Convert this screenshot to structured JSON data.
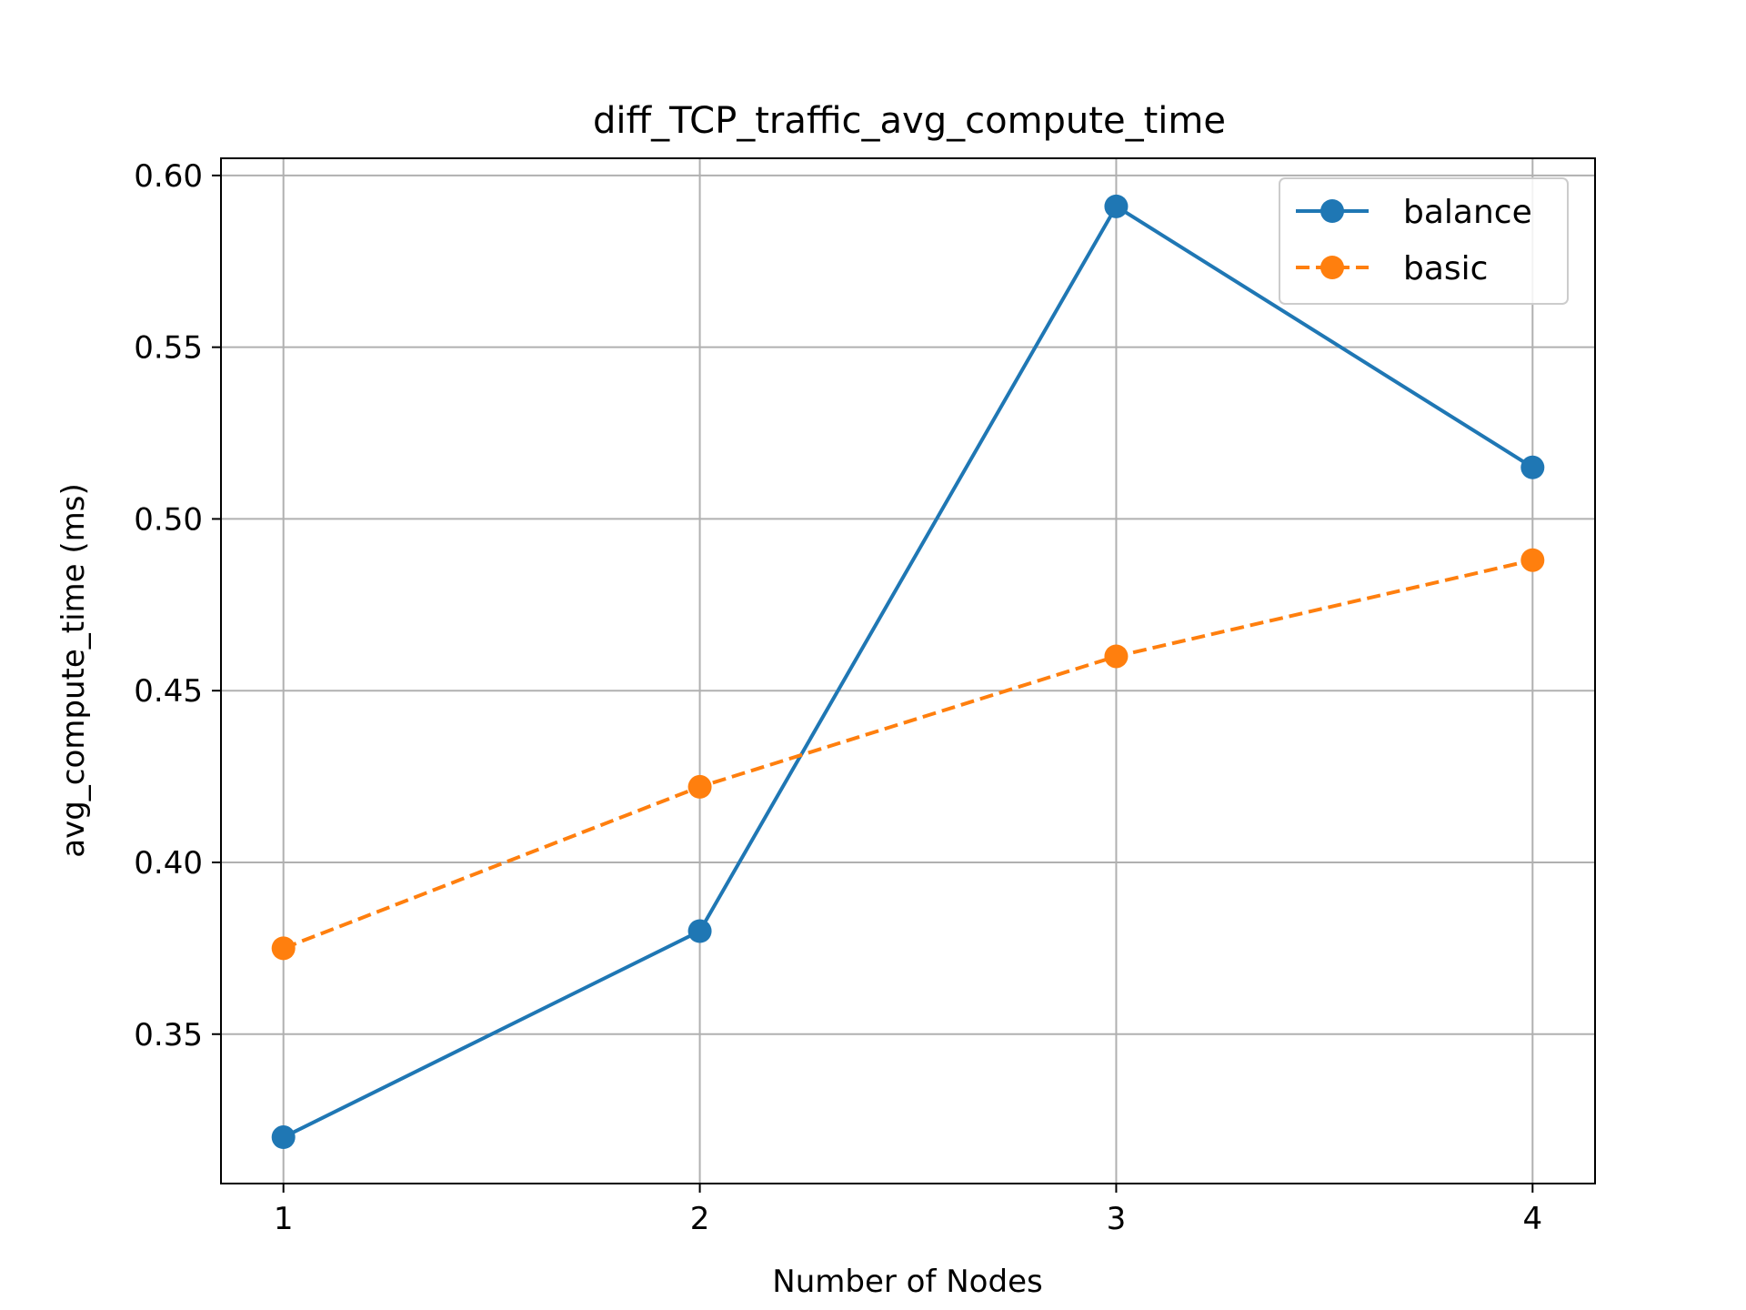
{
  "chart_data": {
    "type": "line",
    "title": "diff_TCP_traffic_avg_compute_time",
    "xlabel": "Number of Nodes",
    "ylabel": "avg_compute_time (ms)",
    "x": [
      1,
      2,
      3,
      4
    ],
    "x_tick_labels": [
      "1",
      "2",
      "3",
      "4"
    ],
    "y_ticks": [
      0.35,
      0.4,
      0.45,
      0.5,
      0.55,
      0.6
    ],
    "y_tick_labels": [
      "0.35",
      "0.40",
      "0.45",
      "0.50",
      "0.55",
      "0.60"
    ],
    "xlim": [
      0.85,
      4.15
    ],
    "ylim": [
      0.3065,
      0.605
    ],
    "grid": true,
    "legend_position": "top-right",
    "series": [
      {
        "name": "balance",
        "values": [
          0.32,
          0.38,
          0.591,
          0.515
        ],
        "color": "#1f77b4",
        "line_style": "solid",
        "marker": "circle"
      },
      {
        "name": "basic",
        "values": [
          0.375,
          0.422,
          0.46,
          0.488
        ],
        "color": "#ff7f0e",
        "line_style": "dashed",
        "marker": "circle"
      }
    ]
  }
}
